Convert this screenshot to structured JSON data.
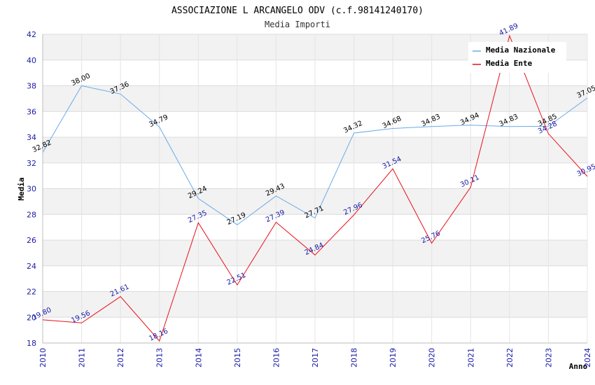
{
  "chart_data": {
    "type": "line",
    "title": "ASSOCIAZIONE L ARCANGELO ODV (c.f.98141240170)",
    "subtitle": "Media Importi",
    "xlabel": "Anno",
    "ylabel": "Media",
    "ylim": [
      18,
      42
    ],
    "yticks": [
      18,
      20,
      22,
      24,
      26,
      28,
      30,
      32,
      34,
      36,
      38,
      40,
      42
    ],
    "categories": [
      "2010",
      "2011",
      "2012",
      "2013",
      "2014",
      "2015",
      "2016",
      "2017",
      "2018",
      "2019",
      "2020",
      "2021",
      "2022",
      "2023",
      "2024"
    ],
    "series": [
      {
        "name": "Media Nazionale",
        "color": "#6aaae8",
        "label_color": "#000000",
        "values": [
          32.82,
          38.0,
          37.36,
          34.79,
          29.24,
          27.19,
          29.43,
          27.71,
          34.32,
          34.68,
          34.83,
          34.94,
          34.83,
          34.85,
          37.05
        ],
        "labels": [
          "32.82",
          "38.00",
          "37.36",
          "34.79",
          "29.24",
          "27.19",
          "29.43",
          "27.71",
          "34.32",
          "34.68",
          "34.83",
          "34.94",
          "34.83",
          "34.85",
          "37.05"
        ]
      },
      {
        "name": "Media Ente",
        "color": "#e8101a",
        "label_color": "#1a1aa6",
        "values": [
          19.8,
          19.56,
          21.61,
          18.16,
          27.35,
          22.51,
          27.39,
          24.84,
          27.96,
          31.54,
          25.76,
          30.11,
          41.89,
          34.28,
          30.95
        ],
        "labels": [
          "19.80",
          "19.56",
          "21.61",
          "18.16",
          "27.35",
          "22.51",
          "27.39",
          "24.84",
          "27.96",
          "31.54",
          "25.76",
          "30.11",
          "41.89",
          "34.28",
          "30.95"
        ]
      }
    ],
    "grid": true,
    "legend": "top-right"
  }
}
